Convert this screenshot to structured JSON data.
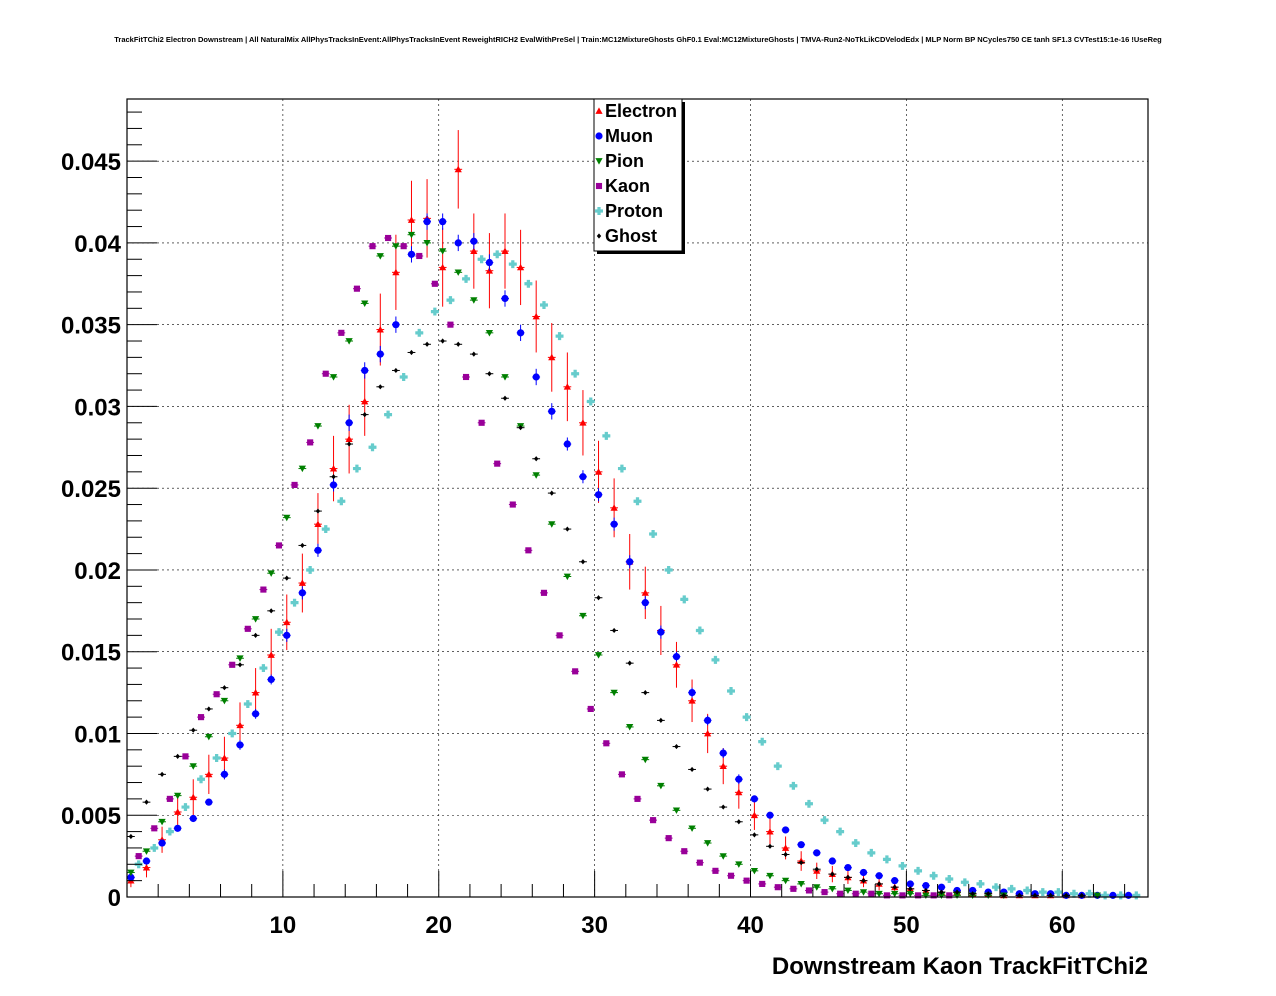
{
  "chart_data": {
    "type": "scatter",
    "title": "TrackFitTChi2 Electron Downstream | All NaturalMix AllPhysTracksInEvent:AllPhysTracksInEvent ReweightRICH2 EvalWithPreSel | Train:MC12MixtureGhosts GhF0.1 Eval:MC12MixtureGhosts | TMVA-Run2-NoTkLikCDVelodEdx | MLP Norm BP NCycles750 CE tanh SF1.3 CVTest15:1e-16 !UseReg",
    "xlabel": "Downstream Kaon TrackFitTChi2",
    "ylabel": "",
    "xlim": [
      0,
      65.5
    ],
    "ylim": [
      0,
      0.0488
    ],
    "x_ticks": [
      10,
      20,
      30,
      40,
      50,
      60
    ],
    "y_ticks": [
      0,
      0.005,
      0.01,
      0.015,
      0.02,
      0.025,
      0.03,
      0.035,
      0.04,
      0.045
    ],
    "x_tick_labels": [
      "10",
      "20",
      "30",
      "40",
      "50",
      "60"
    ],
    "y_tick_labels": [
      "0",
      "0.005",
      "0.01",
      "0.015",
      "0.02",
      "0.025",
      "0.03",
      "0.035",
      "0.04",
      "0.045"
    ],
    "grid": true,
    "legend_position": "top-center",
    "bin_width": 0.5,
    "x": [
      0.25,
      0.75,
      1.25,
      1.75,
      2.25,
      2.75,
      3.25,
      3.75,
      4.25,
      4.75,
      5.25,
      5.75,
      6.25,
      6.75,
      7.25,
      7.75,
      8.25,
      8.75,
      9.25,
      9.75,
      10.25,
      10.75,
      11.25,
      11.75,
      12.25,
      12.75,
      13.25,
      13.75,
      14.25,
      14.75,
      15.25,
      15.75,
      16.25,
      16.75,
      17.25,
      17.75,
      18.25,
      18.75,
      19.25,
      19.75,
      20.25,
      20.75,
      21.25,
      21.75,
      22.25,
      22.75,
      23.25,
      23.75,
      24.25,
      24.75,
      25.25,
      25.75,
      26.25,
      26.75,
      27.25,
      27.75,
      28.25,
      28.75,
      29.25,
      29.75,
      30.25,
      30.75,
      31.25,
      31.75,
      32.25,
      32.75,
      33.25,
      33.75,
      34.25,
      34.75,
      35.25,
      35.75,
      36.25,
      36.75,
      37.25,
      37.75,
      38.25,
      38.75,
      39.25,
      39.75,
      40.25,
      40.75,
      41.25,
      41.75,
      42.25,
      42.75,
      43.25,
      43.75,
      44.25,
      44.75,
      45.25,
      45.75,
      46.25,
      46.75,
      47.25,
      47.75,
      48.25,
      48.75,
      49.25,
      49.75,
      50.25,
      50.75,
      51.25,
      51.75,
      52.25,
      52.75,
      53.25,
      53.75,
      54.25,
      54.75,
      55.25,
      55.75,
      56.25,
      56.75,
      57.25,
      57.75,
      58.25,
      58.75,
      59.25,
      59.75,
      60.25,
      60.75,
      61.25,
      61.75,
      62.25,
      62.75,
      63.25,
      63.75,
      64.25,
      64.75,
      65.25
    ],
    "series": [
      {
        "name": "Electron",
        "color": "#ff0000",
        "marker": "triangle-up",
        "x_start": 0.25,
        "x_step": 1.0,
        "values": [
          0.001,
          0.0018,
          0.0035,
          0.0052,
          0.0061,
          0.0075,
          0.0085,
          0.0105,
          0.0125,
          0.0148,
          0.0168,
          0.0192,
          0.0228,
          0.0262,
          0.028,
          0.0303,
          0.0347,
          0.0382,
          0.0414,
          0.0415,
          0.0385,
          0.0445,
          0.0395,
          0.0383,
          0.0395,
          0.0385,
          0.0355,
          0.033,
          0.0312,
          0.029,
          0.026,
          0.0238,
          0.0205,
          0.0186,
          0.0163,
          0.0142,
          0.012,
          0.01,
          0.008,
          0.0064,
          0.005,
          0.004,
          0.003,
          0.0022,
          0.0016,
          0.0014,
          0.0012,
          0.001,
          0.0008,
          0.0006,
          0.0005,
          0.0004,
          0.0003,
          0.0003,
          0.0002,
          0.0002,
          0.0001,
          0.0001,
          0.0001,
          0.0001,
          0.0001,
          0.0001,
          0.0,
          0.0,
          0.0,
          0.0
        ],
        "errors": [
          0.0004,
          0.0006,
          0.0008,
          0.001,
          0.0011,
          0.0012,
          0.0013,
          0.0014,
          0.0015,
          0.0016,
          0.0017,
          0.0018,
          0.0019,
          0.002,
          0.0021,
          0.0021,
          0.0022,
          0.0023,
          0.0024,
          0.0024,
          0.0024,
          0.0024,
          0.0023,
          0.0023,
          0.0023,
          0.0023,
          0.0022,
          0.0021,
          0.0021,
          0.002,
          0.0019,
          0.0018,
          0.0017,
          0.0016,
          0.0015,
          0.0014,
          0.0013,
          0.0012,
          0.0011,
          0.001,
          0.0009,
          0.0008,
          0.0007,
          0.0006,
          0.0005,
          0.0005,
          0.0004,
          0.0004,
          0.0004,
          0.0003,
          0.0003,
          0.0003,
          0.0002,
          0.0002,
          0.0002,
          0.0002,
          0.0001,
          0.0001,
          0.0001,
          0.0001,
          0.0001,
          0.0001,
          0.0001,
          0.0001,
          0.0001,
          0.0001
        ]
      },
      {
        "name": "Muon",
        "color": "#0000ff",
        "marker": "circle",
        "x_start": 0.25,
        "x_step": 1.0,
        "values": [
          0.0012,
          0.0022,
          0.0033,
          0.0042,
          0.0048,
          0.0058,
          0.0075,
          0.0093,
          0.0112,
          0.0133,
          0.016,
          0.0186,
          0.0212,
          0.0252,
          0.029,
          0.0322,
          0.0332,
          0.035,
          0.0393,
          0.0413,
          0.0413,
          0.04,
          0.0401,
          0.0388,
          0.0366,
          0.0345,
          0.0318,
          0.0297,
          0.0277,
          0.0257,
          0.0246,
          0.0228,
          0.0205,
          0.018,
          0.0162,
          0.0147,
          0.0125,
          0.0108,
          0.0088,
          0.0072,
          0.006,
          0.005,
          0.0041,
          0.0032,
          0.0027,
          0.0022,
          0.0018,
          0.0015,
          0.0013,
          0.001,
          0.0008,
          0.0007,
          0.0006,
          0.0004,
          0.0004,
          0.0003,
          0.0003,
          0.0002,
          0.0002,
          0.0002,
          0.0001,
          0.0001,
          0.0001,
          0.0001,
          0.0001,
          0.0
        ],
        "errors": [
          0.0001,
          0.0001,
          0.0002,
          0.0002,
          0.0002,
          0.0002,
          0.0003,
          0.0003,
          0.0003,
          0.0003,
          0.0004,
          0.0004,
          0.0004,
          0.0004,
          0.0005,
          0.0005,
          0.0005,
          0.0005,
          0.0005,
          0.0005,
          0.0005,
          0.0005,
          0.0005,
          0.0005,
          0.0005,
          0.0005,
          0.0005,
          0.0005,
          0.0004,
          0.0004,
          0.0004,
          0.0004,
          0.0004,
          0.0004,
          0.0004,
          0.0003,
          0.0003,
          0.0003,
          0.0003,
          0.0003,
          0.0002,
          0.0002,
          0.0002,
          0.0002,
          0.0002,
          0.0001,
          0.0001,
          0.0001,
          0.0001,
          0.0001,
          0.0001,
          0.0001,
          0.0001,
          0.0001,
          0.0001,
          0.0001,
          0.0001,
          0.0,
          0.0,
          0.0,
          0.0,
          0.0,
          0.0,
          0.0,
          0.0,
          0.0
        ]
      },
      {
        "name": "Pion",
        "color": "#008000",
        "marker": "triangle-down",
        "x_start": 0.25,
        "x_step": 1.0,
        "values": [
          0.0015,
          0.0028,
          0.0046,
          0.0062,
          0.008,
          0.0098,
          0.012,
          0.0146,
          0.017,
          0.0198,
          0.0232,
          0.0262,
          0.0288,
          0.0318,
          0.034,
          0.0363,
          0.0392,
          0.0398,
          0.0405,
          0.04,
          0.0395,
          0.0382,
          0.0365,
          0.0345,
          0.0318,
          0.0288,
          0.0258,
          0.0228,
          0.0196,
          0.0172,
          0.0148,
          0.0125,
          0.0104,
          0.0084,
          0.0068,
          0.0053,
          0.0042,
          0.0033,
          0.0025,
          0.002,
          0.0016,
          0.0013,
          0.001,
          0.0008,
          0.0006,
          0.0005,
          0.0004,
          0.0003,
          0.0002,
          0.0002,
          0.0002,
          0.0001,
          0.0001,
          0.0001,
          0.0001,
          0.0001,
          0.0001,
          0.0,
          0.0,
          0.0,
          0.0,
          0.0,
          0.0001,
          0.0,
          0.0,
          0.0
        ],
        "errors": [
          0.0001,
          0.0001,
          0.0001,
          0.0001,
          0.0001,
          0.0001,
          0.0001,
          0.0001,
          0.0001,
          0.0001,
          0.0001,
          0.0001,
          0.0001,
          0.0001,
          0.0001,
          0.0001,
          0.0001,
          0.0001,
          0.0001,
          0.0001,
          0.0001,
          0.0001,
          0.0001,
          0.0001,
          0.0001,
          0.0001,
          0.0001,
          0.0001,
          0.0001,
          0.0001,
          0.0001,
          0.0001,
          0.0001,
          0.0001,
          0.0001,
          0.0001,
          0.0001,
          0.0001,
          0.0001,
          0.0001,
          0.0,
          0.0,
          0.0,
          0.0,
          0.0,
          0.0,
          0.0,
          0.0,
          0.0,
          0.0,
          0.0,
          0.0,
          0.0,
          0.0,
          0.0,
          0.0,
          0.0,
          0.0,
          0.0,
          0.0,
          0.0,
          0.0,
          0.0,
          0.0,
          0.0,
          0.0
        ]
      },
      {
        "name": "Kaon",
        "color": "#990099",
        "marker": "square",
        "x_start": 0.75,
        "x_step": 1.0,
        "values": [
          0.0025,
          0.0042,
          0.006,
          0.0086,
          0.011,
          0.0124,
          0.0142,
          0.0164,
          0.0188,
          0.0215,
          0.0252,
          0.0278,
          0.032,
          0.0345,
          0.0372,
          0.0398,
          0.0403,
          0.0398,
          0.0392,
          0.0375,
          0.035,
          0.0318,
          0.029,
          0.0265,
          0.024,
          0.0212,
          0.0186,
          0.016,
          0.0138,
          0.0115,
          0.0094,
          0.0075,
          0.006,
          0.0047,
          0.0036,
          0.0028,
          0.0021,
          0.0016,
          0.0013,
          0.001,
          0.0008,
          0.0006,
          0.0005,
          0.0004,
          0.0003,
          0.0002,
          0.0002,
          0.0002,
          0.0001,
          0.0001,
          0.0001,
          0.0001,
          0.0001,
          0.0,
          0.0,
          0.0,
          0.0,
          0.0,
          0.0,
          0.0,
          0.0,
          0.0,
          0.0,
          0.0,
          0.0
        ],
        "errors": [
          0.0,
          0.0,
          0.0,
          0.0,
          0.0,
          0.0,
          0.0,
          0.0,
          0.0,
          0.0,
          0.0,
          0.0,
          0.0,
          0.0,
          0.0,
          0.0,
          0.0,
          0.0,
          0.0,
          0.0,
          0.0,
          0.0,
          0.0,
          0.0,
          0.0,
          0.0,
          0.0,
          0.0,
          0.0,
          0.0,
          0.0,
          0.0,
          0.0,
          0.0,
          0.0,
          0.0,
          0.0,
          0.0,
          0.0,
          0.0,
          0.0,
          0.0,
          0.0,
          0.0,
          0.0,
          0.0,
          0.0,
          0.0,
          0.0,
          0.0,
          0.0,
          0.0,
          0.0,
          0.0,
          0.0,
          0.0,
          0.0,
          0.0,
          0.0,
          0.0,
          0.0,
          0.0,
          0.0,
          0.0,
          0.0
        ]
      },
      {
        "name": "Proton",
        "color": "#66cccc",
        "marker": "cross",
        "x_start": 0.75,
        "x_step": 1.0,
        "values": [
          0.002,
          0.003,
          0.004,
          0.0055,
          0.0072,
          0.0085,
          0.01,
          0.0118,
          0.014,
          0.0162,
          0.018,
          0.02,
          0.0225,
          0.0242,
          0.0262,
          0.0275,
          0.0295,
          0.0318,
          0.0345,
          0.0358,
          0.0365,
          0.0378,
          0.039,
          0.0393,
          0.0387,
          0.0375,
          0.0362,
          0.0343,
          0.032,
          0.0303,
          0.0282,
          0.0262,
          0.0242,
          0.0222,
          0.02,
          0.0182,
          0.0163,
          0.0145,
          0.0126,
          0.011,
          0.0095,
          0.008,
          0.0068,
          0.0057,
          0.0047,
          0.004,
          0.0033,
          0.0027,
          0.0023,
          0.0019,
          0.0016,
          0.0013,
          0.0011,
          0.0009,
          0.0008,
          0.0006,
          0.0005,
          0.0004,
          0.0003,
          0.0003,
          0.0002,
          0.0002,
          0.0001,
          0.0001,
          0.0001
        ],
        "errors": [
          0.0,
          0.0,
          0.0,
          0.0,
          0.0,
          0.0,
          0.0,
          0.0,
          0.0,
          0.0,
          0.0,
          0.0,
          0.0,
          0.0,
          0.0,
          0.0,
          0.0,
          0.0,
          0.0,
          0.0,
          0.0,
          0.0,
          0.0,
          0.0,
          0.0,
          0.0,
          0.0,
          0.0,
          0.0,
          0.0,
          0.0,
          0.0,
          0.0,
          0.0,
          0.0,
          0.0,
          0.0,
          0.0,
          0.0,
          0.0,
          0.0,
          0.0,
          0.0,
          0.0,
          0.0,
          0.0,
          0.0,
          0.0,
          0.0,
          0.0,
          0.0,
          0.0,
          0.0,
          0.0,
          0.0,
          0.0,
          0.0,
          0.0,
          0.0,
          0.0,
          0.0,
          0.0,
          0.0,
          0.0,
          0.0
        ]
      },
      {
        "name": "Ghost",
        "color": "#000000",
        "marker": "star",
        "x_start": 0.25,
        "x_step": 1.0,
        "values": [
          0.0037,
          0.0058,
          0.0075,
          0.0086,
          0.0102,
          0.0115,
          0.0128,
          0.0142,
          0.016,
          0.0175,
          0.0195,
          0.0215,
          0.0236,
          0.0257,
          0.0277,
          0.0295,
          0.0312,
          0.0322,
          0.0333,
          0.0338,
          0.034,
          0.0338,
          0.0332,
          0.032,
          0.0305,
          0.0287,
          0.0268,
          0.0247,
          0.0225,
          0.0205,
          0.0183,
          0.0163,
          0.0143,
          0.0125,
          0.0108,
          0.0092,
          0.0078,
          0.0066,
          0.0055,
          0.0046,
          0.0038,
          0.0031,
          0.0026,
          0.0021,
          0.0017,
          0.0014,
          0.0012,
          0.001,
          0.0008,
          0.0006,
          0.0005,
          0.0004,
          0.0003,
          0.0003,
          0.0002,
          0.0002,
          0.0001,
          0.0001,
          0.0001,
          0.0001,
          0.0001,
          0.0001,
          0.0,
          0.0,
          0.0,
          0.0
        ],
        "errors": [
          0.0,
          0.0,
          0.0,
          0.0,
          0.0,
          0.0,
          0.0,
          0.0,
          0.0,
          0.0,
          0.0,
          0.0,
          0.0,
          0.0,
          0.0,
          0.0,
          0.0,
          0.0,
          0.0,
          0.0,
          0.0,
          0.0,
          0.0,
          0.0,
          0.0,
          0.0,
          0.0,
          0.0,
          0.0,
          0.0,
          0.0,
          0.0,
          0.0,
          0.0,
          0.0,
          0.0,
          0.0,
          0.0,
          0.0,
          0.0,
          0.0,
          0.0,
          0.0,
          0.0,
          0.0,
          0.0,
          0.0,
          0.0,
          0.0,
          0.0,
          0.0,
          0.0,
          0.0,
          0.0,
          0.0,
          0.0,
          0.0,
          0.0,
          0.0,
          0.0,
          0.0,
          0.0,
          0.0,
          0.0,
          0.0,
          0.0
        ]
      }
    ]
  }
}
